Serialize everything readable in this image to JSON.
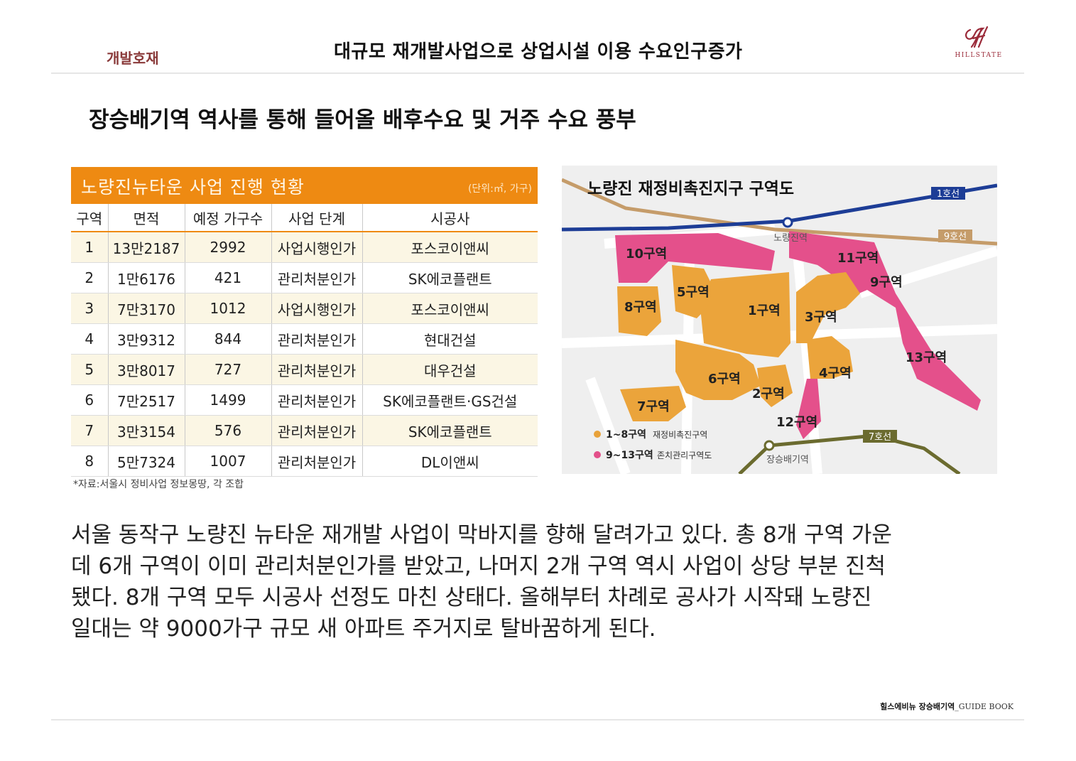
{
  "header": {
    "category": "개발호재",
    "title": "대규모 재개발사업으로 상업시설 이용 수요인구증가",
    "logo_text": "HILLSTATE"
  },
  "subtitle": "장승배기역 역사를 통해 들어올 배후수요 및 거주 수요 풍부",
  "table": {
    "title": "노량진뉴타운 사업 진행 현황",
    "unit": "(단위:㎡, 가구)",
    "headers": [
      "구역",
      "면적",
      "예정 가구수",
      "사업 단계",
      "시공사"
    ],
    "rows": [
      [
        "1",
        "13만2187",
        "2992",
        "사업시행인가",
        "포스코이앤씨"
      ],
      [
        "2",
        "1만6176",
        "421",
        "관리처분인가",
        "SK에코플랜트"
      ],
      [
        "3",
        "7만3170",
        "1012",
        "사업시행인가",
        "포스코이앤씨"
      ],
      [
        "4",
        "3만9312",
        "844",
        "관리처분인가",
        "현대건설"
      ],
      [
        "5",
        "3만8017",
        "727",
        "관리처분인가",
        "대우건설"
      ],
      [
        "6",
        "7만2517",
        "1499",
        "관리처분인가",
        "SK에코플랜트·GS건설"
      ],
      [
        "7",
        "3만3154",
        "576",
        "관리처분인가",
        "SK에코플랜트"
      ],
      [
        "8",
        "5만7324",
        "1007",
        "관리처분인가",
        "DL이앤씨"
      ]
    ],
    "note": "*자료:서울시 정비사업 정보몽땅, 각 조합"
  },
  "map": {
    "title": "노량진 재정비촉진지구 구역도",
    "lines": [
      "1호선",
      "9호선",
      "7호선"
    ],
    "stations": [
      "노량진역",
      "장승배기역"
    ],
    "zones": [
      "1구역",
      "2구역",
      "3구역",
      "4구역",
      "5구역",
      "6구역",
      "7구역",
      "8구역",
      "9구역",
      "10구역",
      "11구역",
      "12구역",
      "13구역"
    ],
    "legend": [
      {
        "label": "1~8구역",
        "desc": "재정비촉진구역",
        "color": "#e8a23a"
      },
      {
        "label": "9~13구역",
        "desc": "존치관리구역도",
        "color": "#e3508a"
      }
    ],
    "colors": {
      "orange": "#eba43b",
      "pink": "#e4508b",
      "line1": "#1d3d96",
      "line9": "#c59c6a",
      "line7": "#6b6b2f"
    }
  },
  "body": [
    "서울 동작구 노량진 뉴타운 재개발 사업이 막바지를 향해 달려가고 있다. 총 8개 구역 가운",
    "데 6개 구역이 이미 관리처분인가를 받았고, 나머지 2개 구역 역시 사업이 상당 부분 진척",
    "됐다. 8개 구역 모두 시공사 선정도 마친 상태다. 올해부터 차례로 공사가 시작돼 노량진",
    "일대는 약 9000가구 규모 새 아파트 주거지로 탈바꿈하게 된다."
  ],
  "footer": {
    "text": "힐스에비뉴 장승배기역",
    "suffix": "_GUIDE BOOK"
  }
}
